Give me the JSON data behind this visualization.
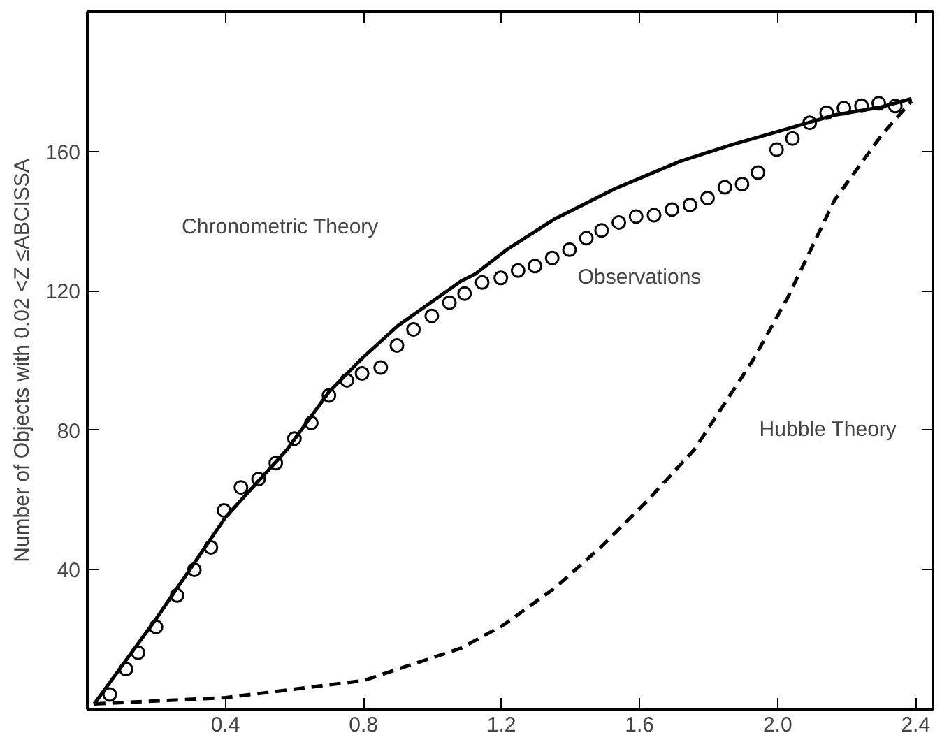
{
  "chart_data": {
    "type": "line",
    "ylabel": "Number of Objects with 0.02 <Z ≤ABCISSA",
    "xlim": [
      0,
      2.45
    ],
    "ylim": [
      0,
      200
    ],
    "xticks": [
      0.4,
      0.8,
      1.2,
      1.6,
      {
        "value": 2.0,
        "label": "2.0"
      },
      2.4
    ],
    "yticks": [
      40,
      80,
      120,
      160
    ],
    "grid": false,
    "series": [
      {
        "type": "line",
        "line_style": "solid",
        "color": "#000000",
        "x": [
          0.02,
          0.2,
          0.4,
          0.578,
          0.7,
          0.8,
          0.9,
          1.0,
          1.083,
          1.124,
          1.218,
          1.354,
          1.529,
          1.719,
          1.867,
          2.03,
          2.165,
          2.3,
          2.388
        ],
        "values": [
          1.5,
          26,
          55,
          74.4,
          91,
          101,
          110,
          117,
          122.8,
          124.8,
          132,
          140.6,
          149.3,
          157.2,
          161.9,
          166.5,
          170.4,
          172.7,
          175.1
        ]
      },
      {
        "type": "scatter",
        "marker": "circle",
        "color": "#000000",
        "x": [
          0.065,
          0.112,
          0.147,
          0.199,
          0.26,
          0.31,
          0.358,
          0.396,
          0.445,
          0.496,
          0.546,
          0.6,
          0.649,
          0.7,
          0.752,
          0.796,
          0.85,
          0.897,
          0.945,
          0.998,
          1.049,
          1.093,
          1.144,
          1.198,
          1.248,
          1.297,
          1.347,
          1.397,
          1.446,
          1.49,
          1.54,
          1.59,
          1.642,
          1.694,
          1.746,
          1.797,
          1.847,
          1.897,
          1.943,
          1.997,
          2.043,
          2.093,
          2.142,
          2.192,
          2.243,
          2.293,
          2.341
        ],
        "values": [
          4.2,
          11.5,
          16.2,
          23.6,
          32.6,
          40,
          46.4,
          57,
          63.6,
          66,
          70.6,
          77.6,
          82.1,
          90,
          94.3,
          96.3,
          98,
          104.3,
          108.9,
          112.8,
          116.6,
          119.2,
          122.4,
          123.7,
          125.8,
          127.1,
          129.4,
          131.8,
          135.1,
          137.3,
          139.6,
          141.3,
          141.7,
          143.3,
          144.6,
          146.6,
          149.7,
          150.6,
          153.9,
          160.5,
          163.7,
          168.2,
          171.1,
          172.4,
          173.1,
          173.8,
          173
        ]
      },
      {
        "type": "line",
        "line_style": "dashed",
        "color": "#000000",
        "x": [
          0.02,
          0.4,
          0.8,
          1.083,
          1.205,
          1.354,
          1.489,
          1.624,
          1.759,
          1.928,
          2.03,
          2.165,
          2.3,
          2.388
        ],
        "values": [
          1.5,
          3.3,
          8.2,
          17.5,
          24.1,
          34.7,
          46.6,
          59.9,
          74.5,
          100,
          118.2,
          146,
          164.5,
          174.4
        ]
      }
    ],
    "annotations": [
      "Chronometric Theory",
      "Observations",
      "Hubble Theory"
    ]
  }
}
